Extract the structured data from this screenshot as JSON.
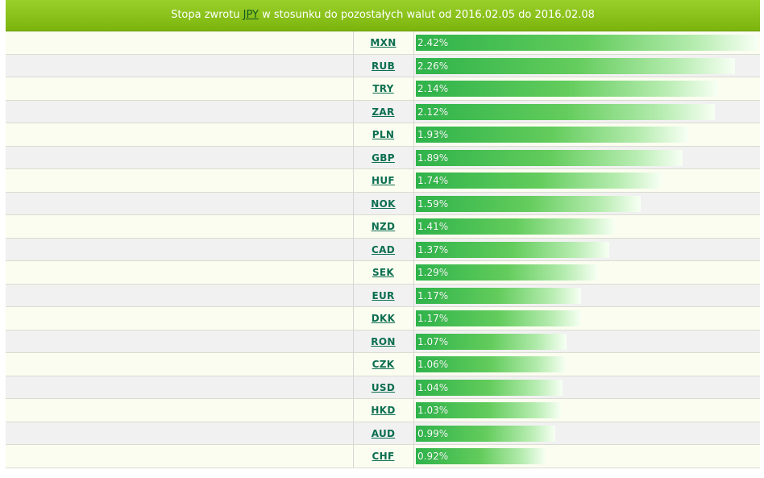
{
  "header": {
    "title_prefix": "Stopa zwrotu ",
    "base_currency": "JPY",
    "title_suffix": " w stosunku do pozostałych walut od 2016.02.05 do 2016.02.08"
  },
  "colors": {
    "header_green": "#8cc31e",
    "bar_green": "#2eb34a",
    "code_link": "#0b6e50",
    "odd_row": "#fbfdf0",
    "even_row": "#f1f1f1"
  },
  "rows": [
    {
      "code": "MXN",
      "label": "2.42%",
      "value": 2.42
    },
    {
      "code": "RUB",
      "label": "2.26%",
      "value": 2.26
    },
    {
      "code": "TRY",
      "label": "2.14%",
      "value": 2.14
    },
    {
      "code": "ZAR",
      "label": "2.12%",
      "value": 2.12
    },
    {
      "code": "PLN",
      "label": "1.93%",
      "value": 1.93
    },
    {
      "code": "GBP",
      "label": "1.89%",
      "value": 1.89
    },
    {
      "code": "HUF",
      "label": "1.74%",
      "value": 1.74
    },
    {
      "code": "NOK",
      "label": "1.59%",
      "value": 1.59
    },
    {
      "code": "NZD",
      "label": "1.41%",
      "value": 1.41
    },
    {
      "code": "CAD",
      "label": "1.37%",
      "value": 1.37
    },
    {
      "code": "SEK",
      "label": "1.29%",
      "value": 1.29
    },
    {
      "code": "EUR",
      "label": "1.17%",
      "value": 1.17
    },
    {
      "code": "DKK",
      "label": "1.17%",
      "value": 1.17
    },
    {
      "code": "RON",
      "label": "1.07%",
      "value": 1.07
    },
    {
      "code": "CZK",
      "label": "1.06%",
      "value": 1.06
    },
    {
      "code": "USD",
      "label": "1.04%",
      "value": 1.04
    },
    {
      "code": "HKD",
      "label": "1.03%",
      "value": 1.03
    },
    {
      "code": "AUD",
      "label": "0.99%",
      "value": 0.99
    },
    {
      "code": "CHF",
      "label": "0.92%",
      "value": 0.92
    }
  ]
}
